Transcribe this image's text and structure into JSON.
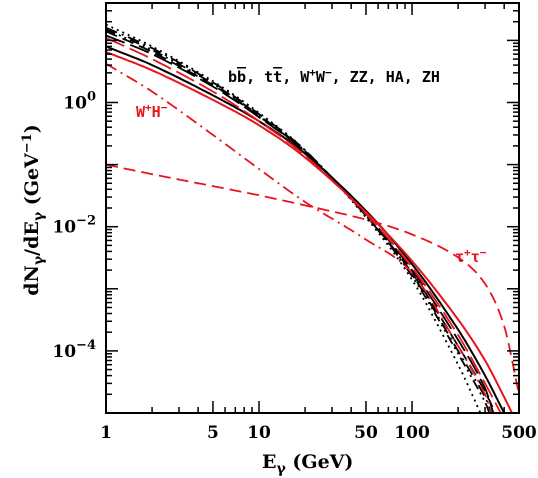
{
  "chart_data": {
    "type": "line",
    "x_scale": "log",
    "y_scale": "log",
    "xlim": [
      1,
      500
    ],
    "ylim": [
      1e-05,
      40
    ],
    "xlabel": "Eγ (GeV)",
    "ylabel": "dNγ/dEγ (GeV⁻¹)",
    "x_ticks": [
      1,
      5,
      10,
      50,
      100,
      500
    ],
    "x_tick_labels": [
      "1",
      "5",
      "10",
      "50",
      "100",
      "500"
    ],
    "y_ticks": [
      1,
      0.01,
      0.0001
    ],
    "y_tick_labels": [
      "10^0",
      "10^-2",
      "10^-4"
    ],
    "grid": false,
    "annotations": [
      {
        "text": "bb̄, tt̄, W⁺W⁻, ZZ, HA, ZH",
        "color": "#000000"
      },
      {
        "text": "W⁺H⁻",
        "color": "#e8141b"
      },
      {
        "text": "τ⁺τ⁻",
        "color": "#e8141b"
      }
    ],
    "series": [
      {
        "color": "#000000",
        "style": "solid",
        "x": [
          1,
          2,
          5,
          10,
          20,
          50,
          100,
          200,
          300,
          400
        ],
        "y": [
          8.0,
          4.0,
          1.3,
          0.5,
          0.15,
          0.018,
          0.0025,
          0.00022,
          4e-05,
          1e-05
        ]
      },
      {
        "color": "#000000",
        "style": "dashed",
        "x": [
          1,
          2,
          5,
          10,
          20,
          50,
          100,
          200,
          300,
          350
        ],
        "y": [
          14.0,
          6.5,
          1.9,
          0.6,
          0.16,
          0.015,
          0.0018,
          0.00012,
          2.2e-05,
          1e-05
        ]
      },
      {
        "color": "#000000",
        "style": "dashdot",
        "x": [
          1,
          2,
          5,
          10,
          20,
          50,
          100,
          200,
          300,
          330
        ],
        "y": [
          16.0,
          7.5,
          2.1,
          0.65,
          0.17,
          0.015,
          0.0017,
          0.0001,
          1.8e-05,
          1e-05
        ]
      },
      {
        "color": "#000000",
        "style": "dotted",
        "x": [
          1,
          2,
          5,
          10,
          20,
          50,
          100,
          200,
          280
        ],
        "y": [
          18.0,
          8.0,
          2.2,
          0.68,
          0.17,
          0.014,
          0.0014,
          6e-05,
          1e-05
        ]
      },
      {
        "color": "#000000",
        "style": "longdash",
        "x": [
          1,
          2,
          5,
          10,
          20,
          50,
          100,
          200,
          300,
          340
        ],
        "y": [
          12.0,
          6.0,
          1.8,
          0.58,
          0.16,
          0.016,
          0.002,
          0.00015,
          2.5e-05,
          1e-05
        ]
      },
      {
        "color": "#000000",
        "style": "dashdotdot",
        "x": [
          1,
          2,
          5,
          10,
          20,
          50,
          100,
          200,
          300,
          320
        ],
        "y": [
          15.0,
          7.0,
          2.0,
          0.62,
          0.165,
          0.015,
          0.0016,
          9e-05,
          1.5e-05,
          1e-05
        ]
      },
      {
        "color": "#e8141b",
        "style": "solid",
        "x": [
          1,
          2,
          5,
          10,
          20,
          50,
          100,
          200,
          300,
          400,
          450
        ],
        "y": [
          6.5,
          3.3,
          1.1,
          0.43,
          0.13,
          0.017,
          0.0028,
          0.00032,
          7e-05,
          1.8e-05,
          1e-05
        ]
      },
      {
        "color": "#e8141b",
        "style": "dashed",
        "x": [
          1,
          2,
          5,
          10,
          20,
          50,
          100,
          200,
          300,
          400,
          500
        ],
        "y": [
          0.1,
          0.07,
          0.045,
          0.032,
          0.022,
          0.013,
          0.0075,
          0.0032,
          0.0012,
          0.00025,
          2e-05
        ]
      },
      {
        "color": "#e8141b",
        "style": "dashdot",
        "x": [
          1,
          2,
          5,
          10,
          20,
          50,
          100,
          200,
          300,
          330
        ],
        "y": [
          4.2,
          1.5,
          0.3,
          0.085,
          0.025,
          0.0062,
          0.0018,
          0.00012,
          2e-05,
          1e-05
        ]
      },
      {
        "color": "#e8141b",
        "style": "longdash",
        "x": [
          1,
          2,
          5,
          10,
          20,
          50,
          100,
          200,
          300,
          380
        ],
        "y": [
          11.0,
          5.0,
          1.5,
          0.5,
          0.14,
          0.016,
          0.0022,
          0.00018,
          3e-05,
          1e-05
        ]
      }
    ]
  }
}
